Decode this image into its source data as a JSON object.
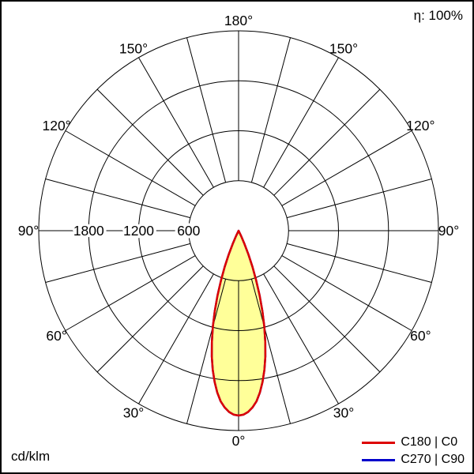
{
  "header": {
    "efficiency_label": "η: 100%"
  },
  "footer": {
    "unit_label": "cd/klm"
  },
  "legend": {
    "items": [
      {
        "label": "C180 | C0",
        "color": "#dd0000"
      },
      {
        "label": "C270 | C90",
        "color": "#0000cc"
      }
    ]
  },
  "chart_data": {
    "type": "polar",
    "subtype": "luminous-intensity-distribution",
    "units": "cd/klm",
    "efficiency": "η: 100%",
    "grid": true,
    "legend_position": "bottom-right",
    "angle_step_deg": 15,
    "angle_ticks": [
      {
        "deg": 0,
        "label": "0°"
      },
      {
        "deg": 30,
        "label": "30°"
      },
      {
        "deg": 60,
        "label": "60°"
      },
      {
        "deg": 90,
        "label": "90°"
      },
      {
        "deg": 120,
        "label": "120°"
      },
      {
        "deg": 150,
        "label": "150°"
      },
      {
        "deg": 180,
        "label": "180°"
      }
    ],
    "ring_values": [
      600,
      1200,
      1800
    ],
    "scale_max": 2400,
    "beam_fill_color": "#ffff99",
    "series": [
      {
        "name": "C180 | C0",
        "color": "#dd0000",
        "fill": "#ffff99",
        "gamma_deg": [
          0,
          1.5,
          3,
          4.5,
          6,
          7.5,
          9,
          10.5,
          12,
          13.5,
          15,
          16.5,
          18,
          19.5,
          21,
          22.5,
          24,
          25.5,
          26.5
        ],
        "intensity_cd_klm": [
          2220,
          2210,
          2180,
          2130,
          2060,
          1960,
          1840,
          1700,
          1545,
          1375,
          1195,
          1010,
          820,
          635,
          465,
          310,
          175,
          70,
          0
        ]
      },
      {
        "name": "C270 | C90",
        "color": "#0000cc",
        "fill": "none",
        "gamma_deg": [
          0,
          1.5,
          3,
          4.5,
          6,
          7.5,
          9,
          10.5,
          12,
          13.5,
          15,
          16.5,
          18,
          19.5,
          21,
          22.5,
          24,
          25.5,
          26.5
        ],
        "intensity_cd_klm": [
          2220,
          2210,
          2180,
          2130,
          2060,
          1960,
          1840,
          1700,
          1545,
          1375,
          1195,
          1010,
          820,
          635,
          465,
          310,
          175,
          70,
          0
        ]
      }
    ]
  }
}
